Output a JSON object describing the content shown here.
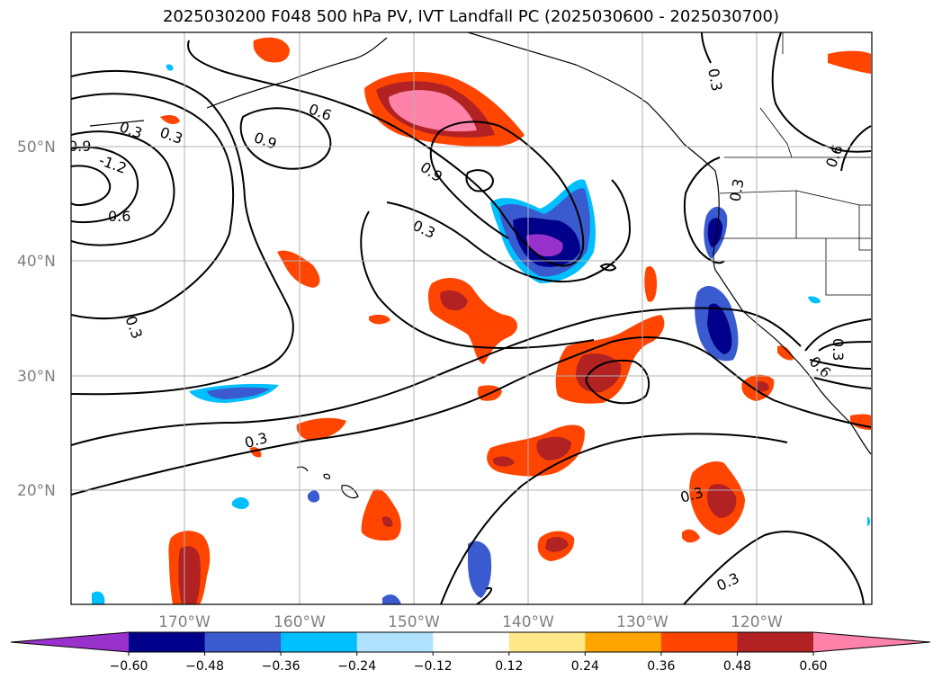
{
  "title": "2025030200 F048 500 hPa PV, IVT Landfall PC (2025030600 - 2025030700)",
  "axes": {
    "lat_labels": [
      "50°N",
      "40°N",
      "30°N",
      "20°N"
    ],
    "lon_labels": [
      "170°W",
      "160°W",
      "150°W",
      "140°W",
      "130°W",
      "120°W"
    ]
  },
  "contour_labels": [
    "0.9",
    "-1.2",
    "0.3",
    "0.3",
    "0.6",
    "0.6",
    "0.9",
    "0.9",
    "0.3",
    "0.3",
    "0.3",
    "0.3",
    "0.3",
    "0.3",
    "0.6",
    "0.3",
    "0.6",
    "0.3"
  ],
  "colorbar": {
    "ticks": [
      "−0.60",
      "−0.48",
      "−0.36",
      "−0.24",
      "−0.12",
      "0.12",
      "0.24",
      "0.36",
      "0.48",
      "0.60"
    ],
    "colors": [
      "#9932cc",
      "#00008b",
      "#3a5bcf",
      "#00bfff",
      "#b0e2ff",
      "#ffffff",
      "#ffe88a",
      "#ffa500",
      "#ff4500",
      "#b22222",
      "#ff82ab"
    ]
  }
}
